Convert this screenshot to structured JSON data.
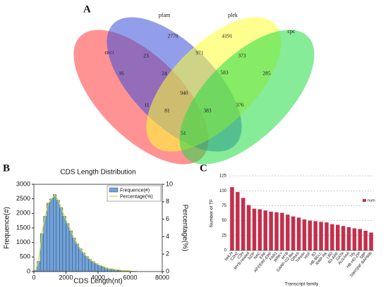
{
  "chart_data": [
    {
      "type": "venn",
      "label": "A",
      "sets": [
        {
          "name": "cnci",
          "color": "#ff3b3b"
        },
        {
          "name": "pfam",
          "color": "#3a4fd8"
        },
        {
          "name": "plek",
          "color": "#ffff33"
        },
        {
          "name": "cpc",
          "color": "#22dd44"
        }
      ],
      "values": [
        16,
        2770,
        4191,
        285,
        23,
        971,
        373,
        24,
        583,
        940,
        11,
        81,
        383,
        376,
        51
      ]
    },
    {
      "type": "histogram",
      "label": "B",
      "title": "CDS Length Distribution",
      "x_label": "CDS Length(nt)",
      "y_label": "Frequence(#)",
      "y2_label": "Percentage(%)",
      "bins": [
        0,
        200,
        400,
        600,
        800,
        1000,
        1200,
        1400,
        1600,
        1800,
        2000,
        2200,
        2400,
        2600,
        2800,
        3000,
        3200,
        3400,
        3600,
        3800,
        4000,
        4200,
        4400,
        4600,
        4800,
        5000,
        5200,
        5400,
        5600,
        5800,
        6000,
        6200,
        6400
      ],
      "series": [
        {
          "name": "Frequence(#)",
          "color": "#6fa3dc",
          "values": [
            30,
            350,
            1300,
            1900,
            2350,
            2500,
            2650,
            2450,
            2200,
            1900,
            1650,
            1400,
            1150,
            950,
            780,
            640,
            520,
            420,
            340,
            270,
            210,
            170,
            130,
            100,
            80,
            60,
            45,
            35,
            25,
            18,
            12,
            8
          ]
        },
        {
          "name": "Percentage(%)",
          "color": "#c8d83a",
          "axis": "y2",
          "x": [
            100,
            300,
            500,
            700,
            900,
            1100,
            1300,
            1500,
            1700,
            1900,
            2100,
            2300,
            2500,
            2700,
            2900,
            3100,
            3300,
            3500,
            3700,
            3900,
            4100,
            4300,
            4500,
            4700,
            4900,
            5100,
            5300,
            5500,
            5700,
            5900,
            6100,
            6300
          ],
          "values": [
            0.1,
            1.2,
            4.3,
            6.3,
            7.8,
            8.3,
            8.8,
            8.2,
            7.3,
            6.3,
            5.5,
            4.7,
            3.8,
            3.2,
            2.6,
            2.1,
            1.7,
            1.4,
            1.1,
            0.9,
            0.7,
            0.6,
            0.4,
            0.3,
            0.3,
            0.2,
            0.2,
            0.1,
            0.1,
            0.1,
            0.0,
            0.0
          ]
        }
      ],
      "xlim": [
        0,
        8000
      ],
      "xticks": [
        0,
        2000,
        4000,
        6000,
        8000
      ],
      "ylim": [
        0,
        3000
      ],
      "yticks": [
        0,
        500,
        1000,
        1500,
        2000,
        2500,
        3000
      ],
      "y2lim": [
        0,
        10
      ],
      "y2ticks": [
        0,
        2,
        4,
        6,
        8,
        10
      ],
      "legend": "top-right"
    },
    {
      "type": "bar",
      "label": "C",
      "x_label": "Transcript family",
      "y_label": "Number of TF",
      "categories": [
        "bHLH",
        "C2H2",
        "C3H",
        "MYB-related",
        "bZIP",
        "NAC",
        "ERF",
        "AP2/ERF-ERF",
        "FAR1",
        "WRKY",
        "MYB",
        "GARP-G2-like",
        "GRAS",
        "Trihelix",
        "HSF",
        "B3",
        "HB-BELL",
        "RWP-RK",
        "LBD",
        "B3-ARF",
        "GATA",
        "AUX/IAA",
        "Tify",
        "HB-HD-ZIP",
        "SBP",
        "SWI/SNF-BAF60b"
      ],
      "series": [
        {
          "name": "num",
          "color": "#c3304c",
          "values": [
            106,
            98,
            88,
            76,
            70,
            69,
            67,
            65,
            64,
            63,
            60,
            57,
            55,
            52,
            50,
            49,
            48,
            47,
            44,
            43,
            41,
            39,
            37,
            36,
            33,
            30
          ]
        }
      ],
      "ylim": [
        0,
        125
      ],
      "yticks": [
        0,
        25,
        50,
        75,
        100,
        125
      ],
      "grid": true,
      "legend": "right"
    }
  ]
}
